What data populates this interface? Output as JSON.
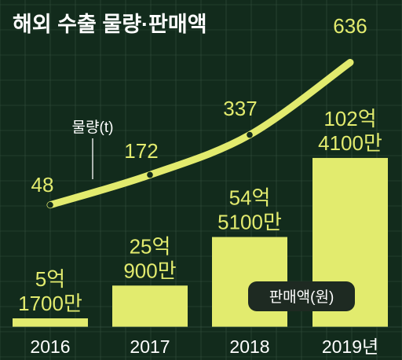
{
  "title": "해외 수출 물량·판매액",
  "colors": {
    "background": "#122b1c",
    "grid": "#35503f",
    "accent": "#e2eb6e",
    "bar_label": "#e2eb6e",
    "text_light": "#ffffff",
    "legend_box": "#1e2a22",
    "line_dot": "#122b1c"
  },
  "chart_data": {
    "type": "bar",
    "title": "해외 수출 물량·판매액",
    "categories": [
      "2016",
      "2017",
      "2018",
      "2019년"
    ],
    "grid": true,
    "series": [
      {
        "name": "판매액(원)",
        "type": "bar",
        "values": [
          51700,
          250900,
          545100,
          1024100
        ],
        "value_labels": [
          [
            "5억",
            "1700만"
          ],
          [
            "25억",
            "900만"
          ],
          [
            "54억",
            "5100만"
          ],
          [
            "102억",
            "4100만"
          ]
        ]
      },
      {
        "name": "물량(t)",
        "type": "line",
        "values": [
          48,
          172,
          337,
          636
        ],
        "value_labels": [
          "48",
          "172",
          "337",
          "636"
        ]
      }
    ]
  }
}
